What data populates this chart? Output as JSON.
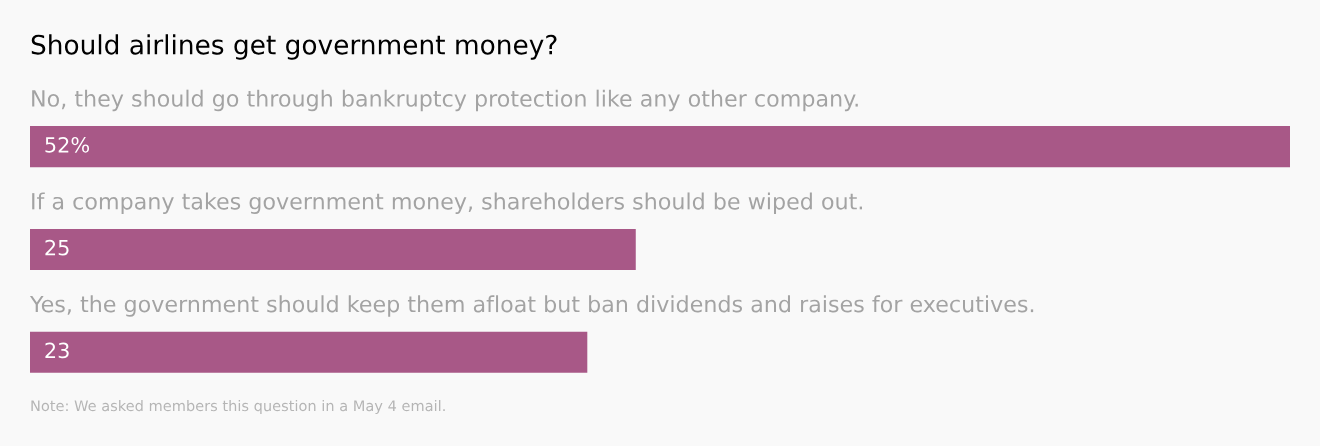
{
  "chart_data": {
    "type": "bar",
    "orientation": "horizontal",
    "title": "Should airlines get government money?",
    "categories": [
      "No, they should go through bankruptcy protection like any other company.",
      "If a company takes government money, shareholders should be wiped out.",
      "Yes, the government should keep them afloat but ban dividends and raises for executives."
    ],
    "values": [
      52,
      25,
      23
    ],
    "value_labels": [
      "52%",
      "25",
      "23"
    ],
    "color": "#a85887",
    "xlim": [
      0,
      52
    ],
    "annotations": [
      "Note: We asked members this question in a May 4 email."
    ]
  }
}
